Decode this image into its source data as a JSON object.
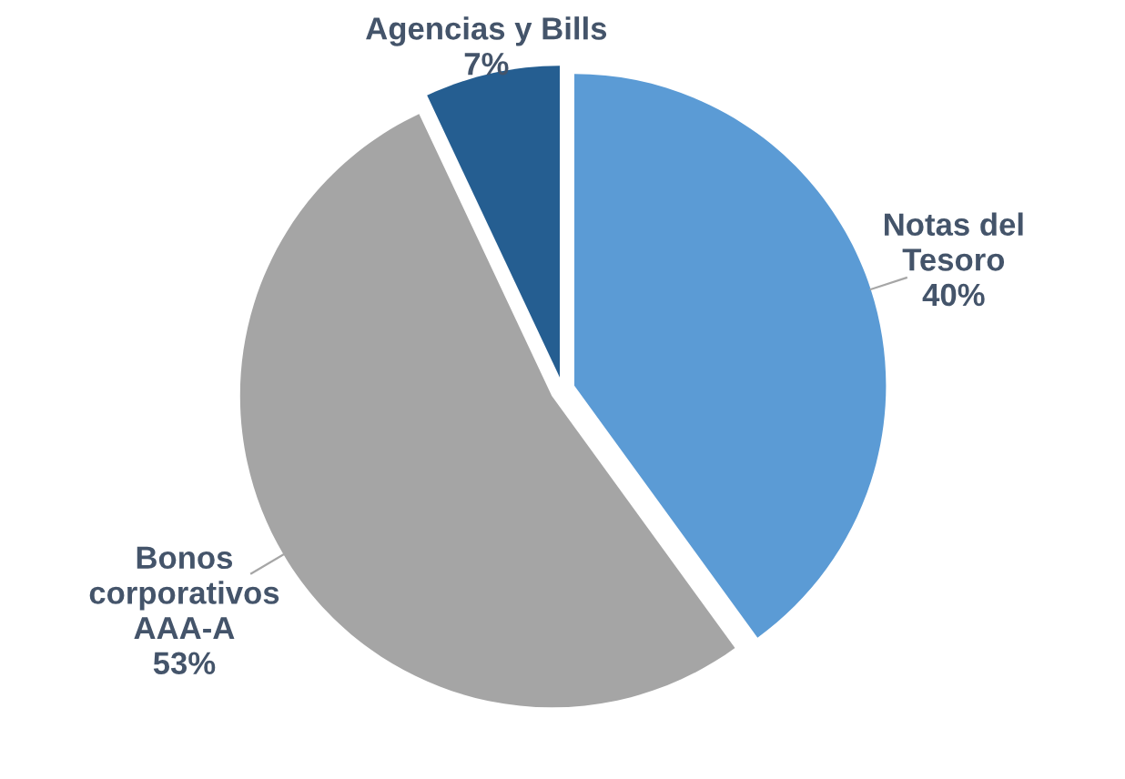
{
  "chart_data": {
    "type": "pie",
    "categories": [
      "Notas del\nTesoro",
      "Bonos\ncorporativos\nAAA-A",
      "Agencias y Bills"
    ],
    "values": [
      40,
      53,
      7
    ],
    "colors": [
      "#5b9bd5",
      "#a5a5a5",
      "#255e91"
    ],
    "value_labels": [
      "40%",
      "53%",
      "7%"
    ],
    "legend": false
  }
}
